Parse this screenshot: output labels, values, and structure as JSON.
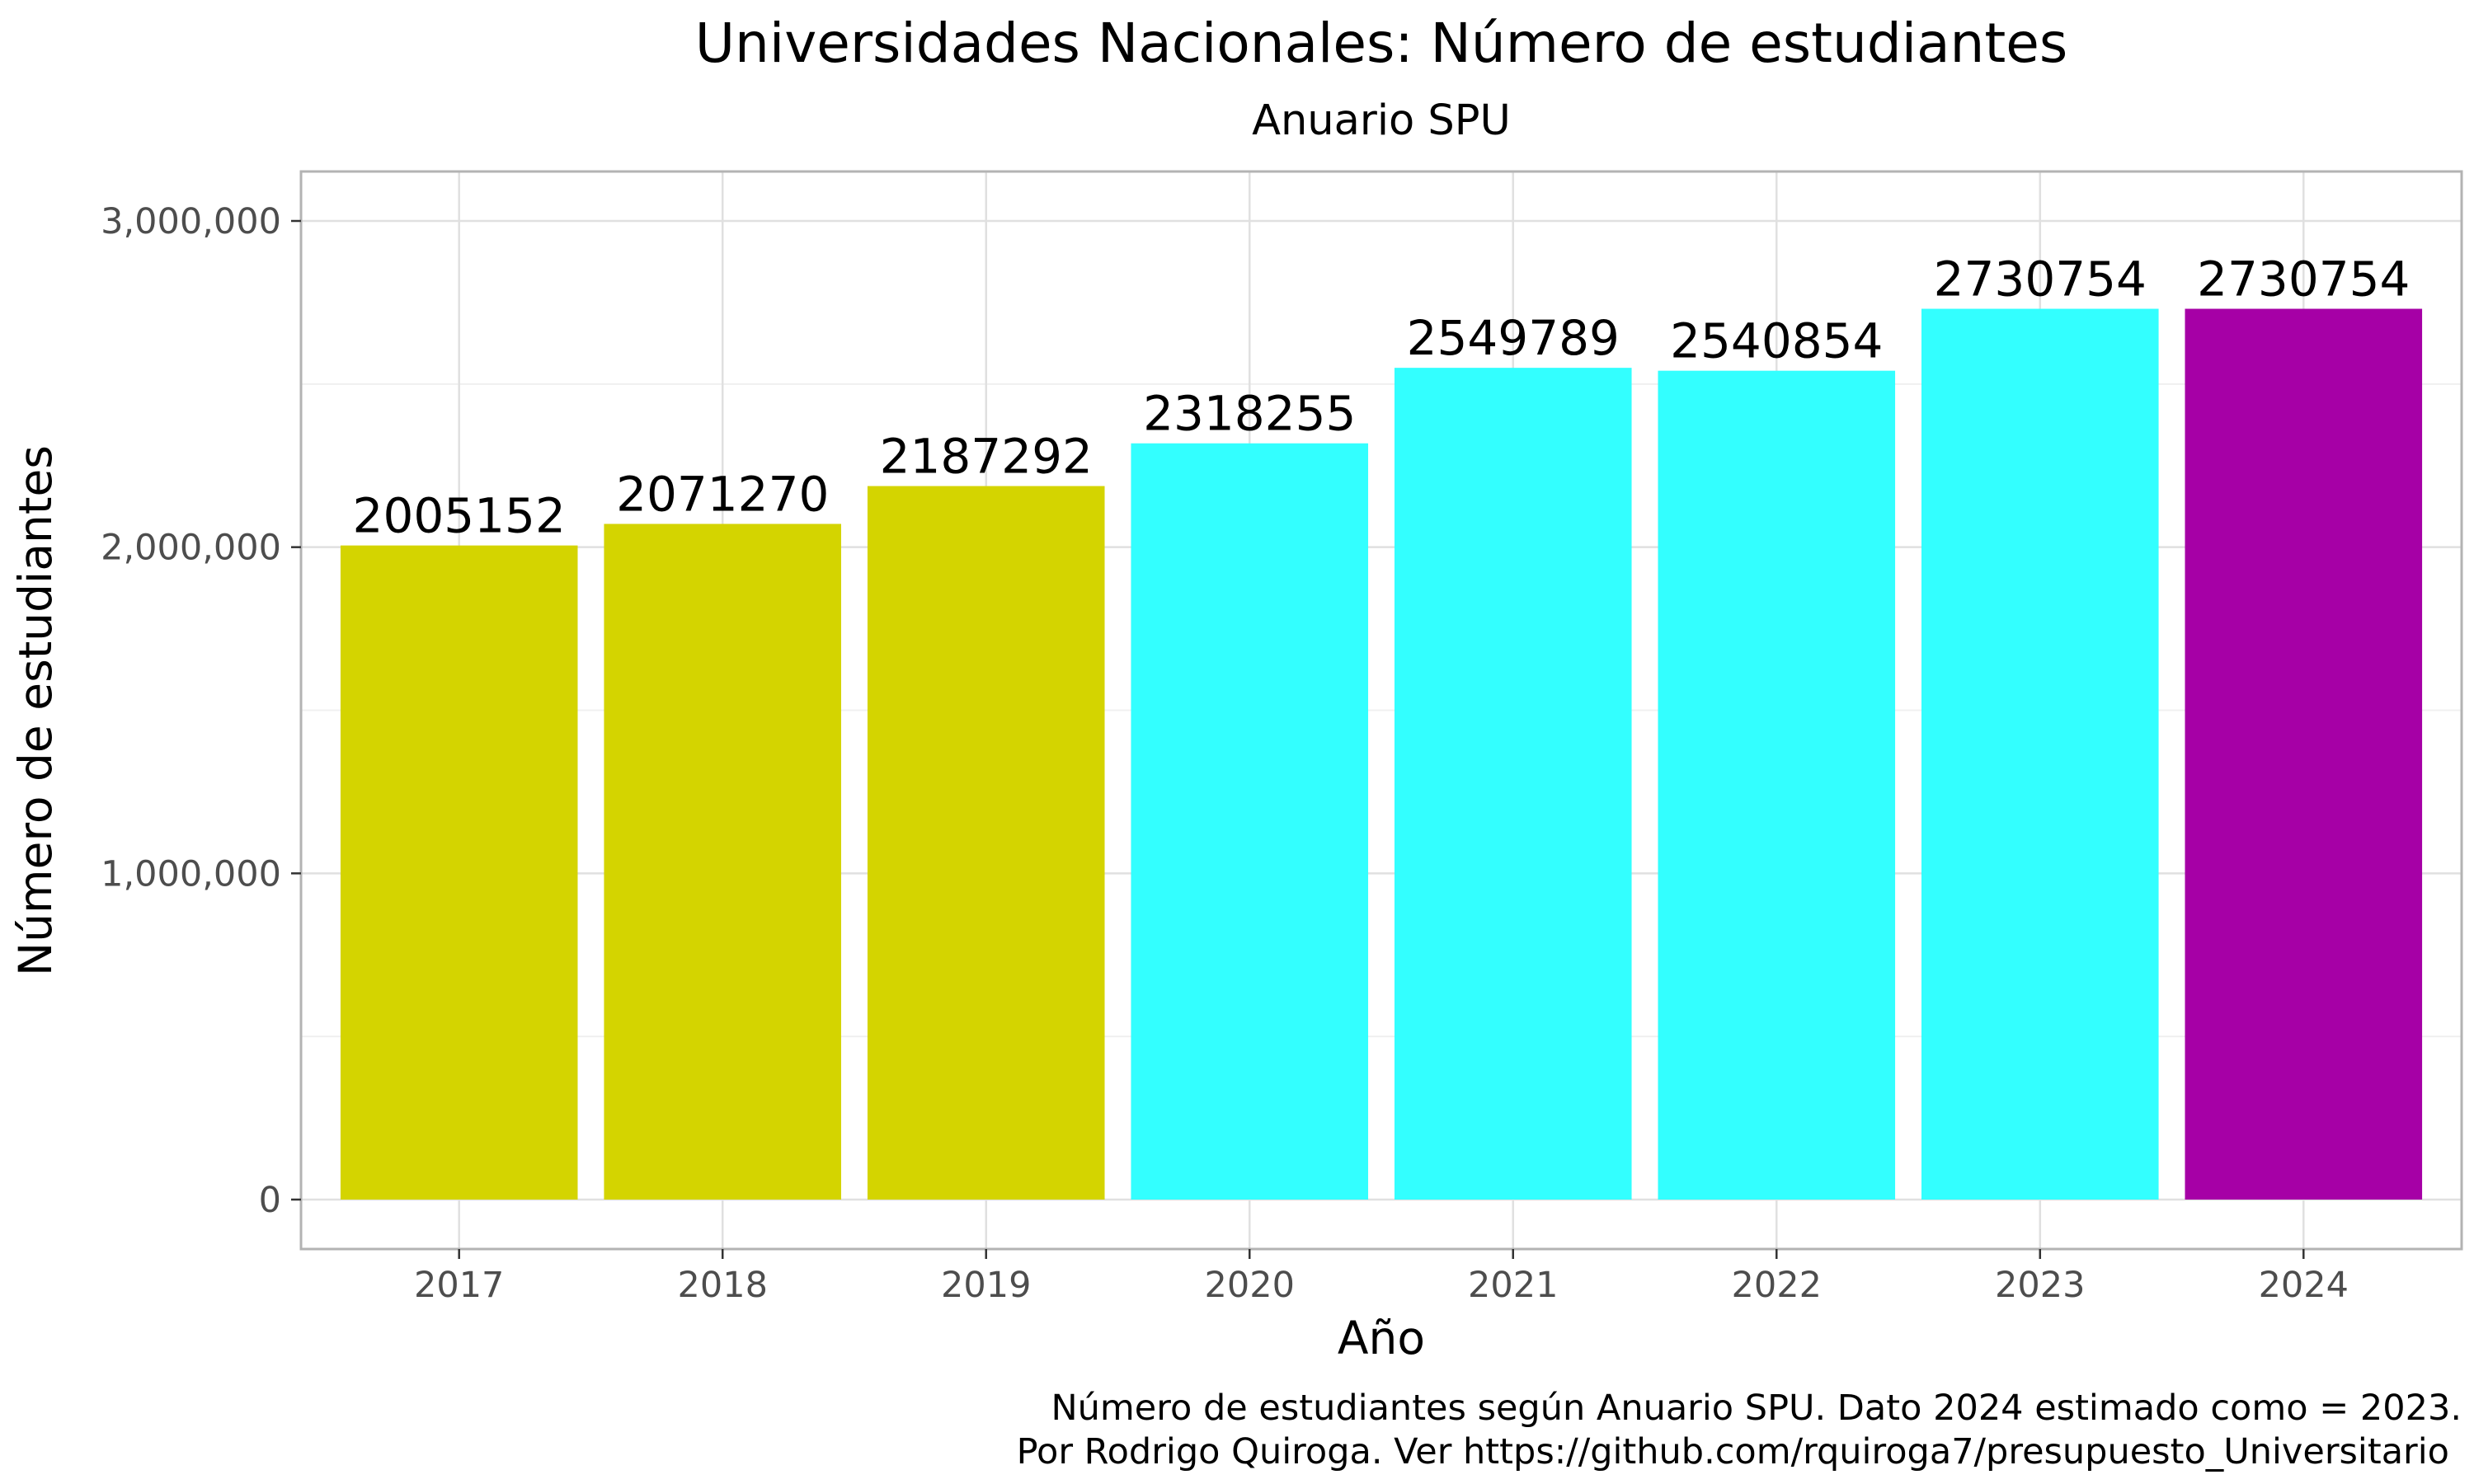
{
  "chart_data": {
    "type": "bar",
    "title": "Universidades Nacionales: Número de estudiantes",
    "subtitle": "Anuario SPU",
    "xlabel": "Año",
    "ylabel": "Número de estudiantes",
    "categories": [
      "2017",
      "2018",
      "2019",
      "2020",
      "2021",
      "2022",
      "2023",
      "2024"
    ],
    "values": [
      2005152,
      2071270,
      2187292,
      2318255,
      2549789,
      2540854,
      2730754,
      2730754
    ],
    "colors": [
      "#D4D400",
      "#D4D400",
      "#D4D400",
      "#33FFFF",
      "#33FFFF",
      "#33FFFF",
      "#33FFFF",
      "#A600A6"
    ],
    "ylim": [
      0,
      3150000
    ],
    "yticks": [
      0,
      1000000,
      2000000,
      3000000
    ],
    "ytick_labels": [
      "0",
      "1,000,000",
      "2,000,000",
      "3,000,000"
    ],
    "grid": true,
    "legend": "none",
    "caption": [
      "Número de estudiantes según Anuario SPU. Dato 2024 estimado como = 2023.",
      "Por Rodrigo Quiroga. Ver https://github.com/rquiroga7/presupuesto_Universitario"
    ]
  }
}
